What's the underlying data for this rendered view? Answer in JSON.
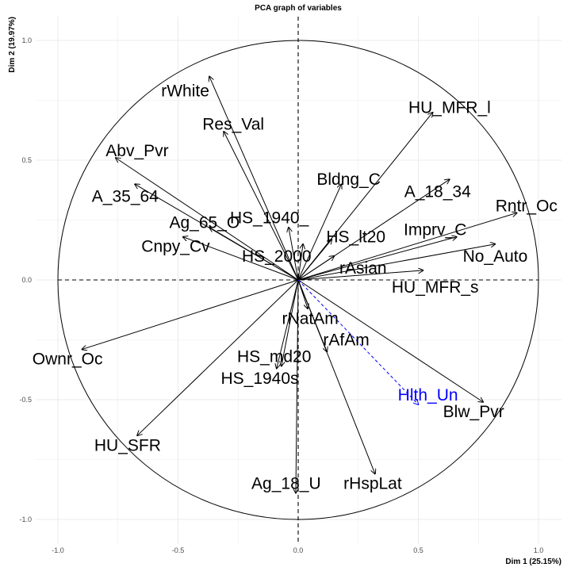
{
  "chart_data": {
    "type": "scatter",
    "subtype": "pca-correlation-circle",
    "title": "PCA graph of variables",
    "xlabel": "Dim 1 (25.15%)",
    "ylabel": "Dim 2 (19.97%)",
    "xlim": [
      -1.1,
      1.1
    ],
    "ylim": [
      -1.1,
      1.1
    ],
    "x_ticks": [
      "-1.0",
      "-0.5",
      "0.0",
      "0.5",
      "1.0"
    ],
    "y_ticks": [
      "-1.0",
      "-0.5",
      "0.0",
      "0.5",
      "1.0"
    ],
    "grid": true,
    "unit_circle": true,
    "colors": {
      "active": "#000000",
      "supplementary": "#0000ff",
      "grid": "#ebebeb",
      "tick": "#4d4d4d"
    },
    "variables": [
      {
        "name": "rWhite",
        "x": -0.37,
        "y": 0.85,
        "label_x": -0.47,
        "label_y": 0.79,
        "supplementary": false
      },
      {
        "name": "Res_Val",
        "x": -0.31,
        "y": 0.62,
        "label_x": -0.27,
        "label_y": 0.65,
        "supplementary": false
      },
      {
        "name": "Abv_Pvr",
        "x": -0.76,
        "y": 0.51,
        "label_x": -0.67,
        "label_y": 0.54,
        "supplementary": false
      },
      {
        "name": "A_35_64",
        "x": -0.68,
        "y": 0.4,
        "label_x": -0.72,
        "label_y": 0.35,
        "supplementary": false
      },
      {
        "name": "Ag_65_O",
        "x": -0.37,
        "y": 0.22,
        "label_x": -0.39,
        "label_y": 0.24,
        "supplementary": false
      },
      {
        "name": "Cnpy_Cv",
        "x": -0.48,
        "y": 0.18,
        "label_x": -0.51,
        "label_y": 0.14,
        "supplementary": false
      },
      {
        "name": "HS_1940_",
        "x": -0.04,
        "y": 0.22,
        "label_x": -0.12,
        "label_y": 0.26,
        "supplementary": false
      },
      {
        "name": "HS_2000",
        "x": 0.02,
        "y": 0.15,
        "label_x": -0.09,
        "label_y": 0.1,
        "supplementary": false
      },
      {
        "name": "Bldng_C",
        "x": 0.18,
        "y": 0.4,
        "label_x": 0.21,
        "label_y": 0.42,
        "supplementary": false
      },
      {
        "name": "HU_MFR_l",
        "x": 0.56,
        "y": 0.7,
        "label_x": 0.63,
        "label_y": 0.72,
        "supplementary": false
      },
      {
        "name": "A_18_34",
        "x": 0.63,
        "y": 0.42,
        "label_x": 0.58,
        "label_y": 0.37,
        "supplementary": false
      },
      {
        "name": "Rntr_Oc",
        "x": 0.91,
        "y": 0.28,
        "label_x": 0.95,
        "label_y": 0.31,
        "supplementary": false
      },
      {
        "name": "HS_lt20",
        "x": 0.14,
        "y": 0.17,
        "label_x": 0.24,
        "label_y": 0.18,
        "supplementary": false
      },
      {
        "name": "Imprv_C",
        "x": 0.66,
        "y": 0.18,
        "label_x": 0.57,
        "label_y": 0.21,
        "supplementary": false
      },
      {
        "name": "No_Auto",
        "x": 0.82,
        "y": 0.15,
        "label_x": 0.82,
        "label_y": 0.1,
        "supplementary": false
      },
      {
        "name": "rAsian",
        "x": 0.15,
        "y": 0.1,
        "label_x": 0.27,
        "label_y": 0.05,
        "supplementary": false
      },
      {
        "name": "HU_MFR_s",
        "x": 0.52,
        "y": 0.04,
        "label_x": 0.57,
        "label_y": -0.03,
        "supplementary": false
      },
      {
        "name": "rNatAm",
        "x": 0.04,
        "y": -0.12,
        "label_x": 0.05,
        "label_y": -0.16,
        "supplementary": false
      },
      {
        "name": "rAfAm",
        "x": 0.12,
        "y": -0.3,
        "label_x": 0.2,
        "label_y": -0.25,
        "supplementary": false
      },
      {
        "name": "HS_md20",
        "x": -0.07,
        "y": -0.36,
        "label_x": -0.1,
        "label_y": -0.32,
        "supplementary": false
      },
      {
        "name": "HS_1940s",
        "x": -0.09,
        "y": -0.37,
        "label_x": -0.16,
        "label_y": -0.41,
        "supplementary": false
      },
      {
        "name": "Ownr_Oc",
        "x": -0.9,
        "y": -0.29,
        "label_x": -0.96,
        "label_y": -0.33,
        "supplementary": false
      },
      {
        "name": "HU_SFR",
        "x": -0.67,
        "y": -0.65,
        "label_x": -0.71,
        "label_y": -0.69,
        "supplementary": false
      },
      {
        "name": "Blw_Pvr",
        "x": 0.77,
        "y": -0.51,
        "label_x": 0.73,
        "label_y": -0.55,
        "supplementary": false
      },
      {
        "name": "rHspLat",
        "x": 0.32,
        "y": -0.81,
        "label_x": 0.31,
        "label_y": -0.85,
        "supplementary": false
      },
      {
        "name": "Ag_18_U",
        "x": -0.01,
        "y": -0.89,
        "label_x": -0.05,
        "label_y": -0.85,
        "supplementary": false
      },
      {
        "name": "Hlth_Un",
        "x": 0.5,
        "y": -0.52,
        "label_x": 0.54,
        "label_y": -0.48,
        "supplementary": true
      }
    ]
  }
}
